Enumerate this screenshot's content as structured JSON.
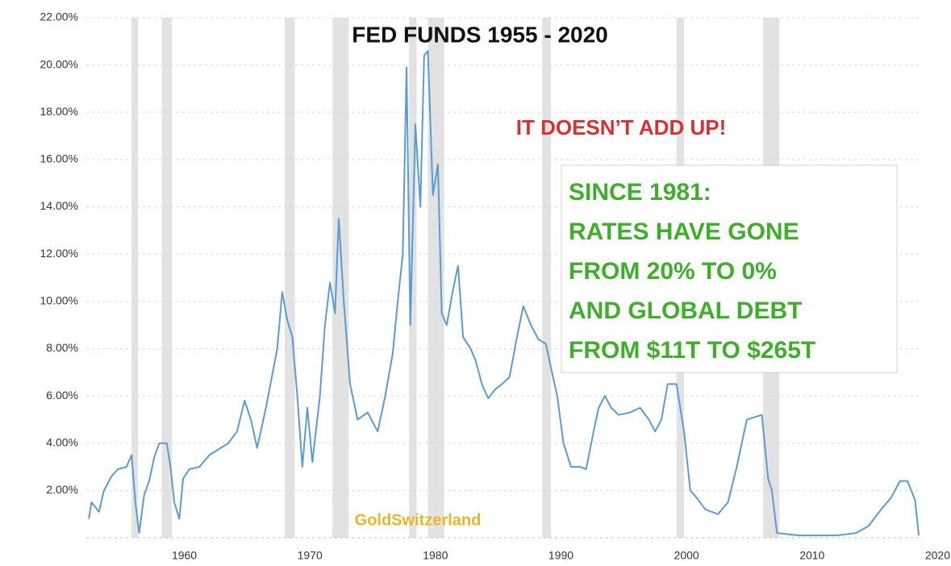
{
  "chart_data": {
    "type": "line",
    "title": "FED FUNDS 1955 - 2020",
    "annotation": "IT DOESN’T ADD UP!",
    "box_text": [
      "SINCE 1981:",
      "RATES HAVE GONE",
      "FROM 20% TO 0%",
      "AND GLOBAL DEBT",
      "FROM $11T TO $265T"
    ],
    "watermark": "GoldSwitzerland",
    "color": "#5b9bd5",
    "shade_color": "#e2e2e2",
    "grid": true,
    "xlim": [
      1952,
      2021
    ],
    "ylim": [
      0,
      22
    ],
    "xticks": [
      1960,
      1970,
      1980,
      1990,
      2000,
      2010,
      2020
    ],
    "yticks": [
      {
        "value": 2,
        "label": "2.00%"
      },
      {
        "value": 4,
        "label": "4.00%"
      },
      {
        "value": 6,
        "label": "6.00%"
      },
      {
        "value": 8,
        "label": "8.00%"
      },
      {
        "value": 10,
        "label": "10.00%"
      },
      {
        "value": 12,
        "label": "12.00%"
      },
      {
        "value": 14,
        "label": "14.00%"
      },
      {
        "value": 16,
        "label": "16.00%"
      },
      {
        "value": 18,
        "label": "18.00%"
      },
      {
        "value": 20,
        "label": "20.00%"
      },
      {
        "value": 22,
        "label": "22.00%"
      }
    ],
    "shaded_regions": [
      [
        1955.8,
        1956.3
      ],
      [
        1958.2,
        1959.0
      ],
      [
        1968.0,
        1968.8
      ],
      [
        1971.8,
        1973.1
      ],
      [
        1977.9,
        1978.5
      ],
      [
        1979.4,
        1980.7
      ],
      [
        1988.5,
        1989.2
      ],
      [
        1999.2,
        1999.8
      ],
      [
        2006.1,
        2007.4
      ]
    ],
    "x": [
      1952.4,
      1952.6,
      1953.2,
      1953.6,
      1954.2,
      1954.7,
      1955.4,
      1955.8,
      1956.1,
      1956.4,
      1956.8,
      1957.2,
      1957.6,
      1958.0,
      1958.6,
      1958.9,
      1959.2,
      1959.6,
      1959.9,
      1960.4,
      1961.2,
      1962.0,
      1963.5,
      1964.2,
      1964.8,
      1965.3,
      1965.8,
      1966.5,
      1967.4,
      1967.8,
      1968.2,
      1968.6,
      1969.0,
      1969.4,
      1969.8,
      1970.2,
      1970.8,
      1971.2,
      1971.6,
      1972.0,
      1972.3,
      1972.7,
      1973.2,
      1973.8,
      1974.6,
      1975.4,
      1976.0,
      1976.6,
      1977.0,
      1977.4,
      1977.7,
      1978.0,
      1978.4,
      1978.8,
      1979.1,
      1979.4,
      1979.8,
      1980.2,
      1980.5,
      1980.9,
      1981.4,
      1981.8,
      1982.2,
      1982.8,
      1983.2,
      1983.7,
      1984.2,
      1984.8,
      1985.3,
      1985.9,
      1986.5,
      1987.0,
      1987.6,
      1988.2,
      1988.8,
      1989.2,
      1989.7,
      1990.2,
      1990.8,
      1991.5,
      1992.0,
      1992.6,
      1993.0,
      1993.5,
      1994.0,
      1994.6,
      1995.5,
      1996.3,
      1997.0,
      1997.5,
      1998.0,
      1998.5,
      1999.2,
      1999.8,
      2000.3,
      2000.8,
      2001.5,
      2002.5,
      2003.3,
      2004.0,
      2004.8,
      2006.0,
      2006.5,
      2006.8,
      2007.2,
      2009.0,
      2012.0,
      2013.5,
      2014.5,
      2015.5,
      2016.3,
      2017.0,
      2017.6,
      2018.2,
      2018.5
    ],
    "values": [
      0.8,
      1.5,
      1.1,
      2.0,
      2.6,
      2.9,
      3.0,
      3.5,
      1.5,
      0.2,
      1.8,
      2.4,
      3.4,
      4.0,
      4.0,
      3.0,
      1.5,
      0.8,
      2.5,
      2.9,
      3.0,
      3.5,
      4.0,
      4.5,
      5.8,
      5.0,
      3.8,
      5.5,
      8.0,
      10.4,
      9.2,
      8.5,
      6.0,
      3.0,
      5.5,
      3.2,
      6.0,
      9.0,
      10.8,
      9.5,
      13.5,
      10.0,
      6.5,
      5.0,
      5.3,
      4.5,
      6.0,
      7.8,
      10.0,
      12.0,
      19.9,
      9.0,
      17.5,
      14.0,
      20.4,
      20.6,
      14.5,
      15.8,
      9.5,
      9.0,
      10.5,
      11.5,
      8.5,
      8.0,
      7.5,
      6.5,
      5.9,
      6.3,
      6.5,
      6.8,
      8.5,
      9.8,
      9.0,
      8.4,
      8.2,
      7.2,
      6.0,
      4.0,
      3.0,
      3.0,
      2.9,
      4.5,
      5.5,
      6.0,
      5.5,
      5.2,
      5.3,
      5.5,
      5.0,
      4.5,
      5.0,
      6.5,
      6.5,
      4.5,
      2.0,
      1.7,
      1.2,
      1.0,
      1.5,
      3.0,
      5.0,
      5.2,
      2.5,
      2.0,
      0.2,
      0.1,
      0.1,
      0.2,
      0.5,
      1.2,
      1.7,
      2.4,
      2.4,
      1.6,
      0.1
    ]
  }
}
